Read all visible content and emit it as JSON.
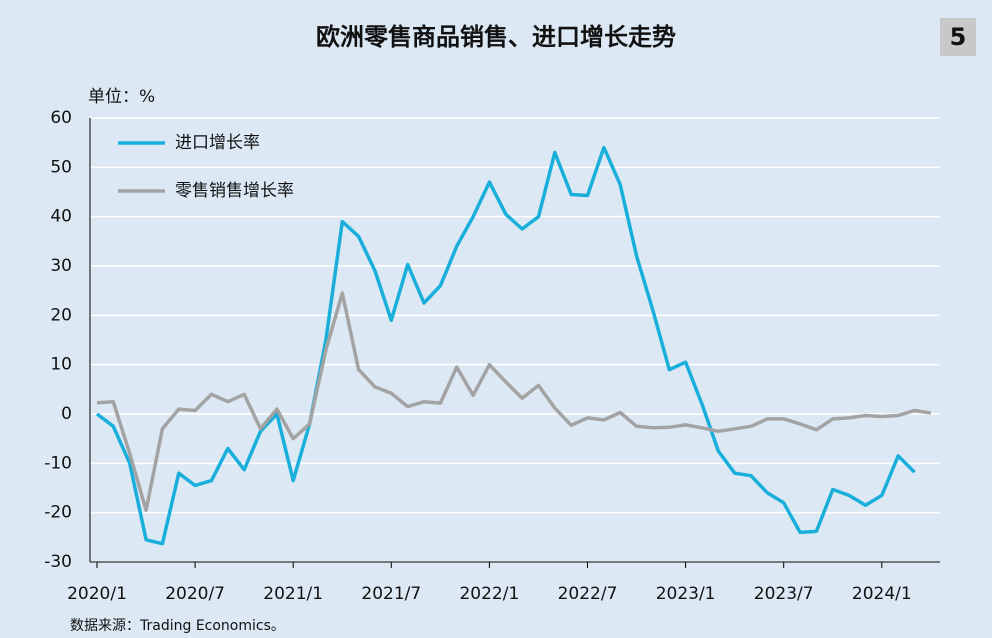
{
  "chart_data": {
    "type": "line",
    "title": "欧洲零售商品销售、进口增长走势",
    "badge": "5",
    "unit": "单位：%",
    "source": "数据来源：Trading Economics。",
    "categories": [
      "2020/1",
      null,
      null,
      null,
      null,
      null,
      "2020/7",
      null,
      null,
      null,
      null,
      null,
      "2021/1",
      null,
      null,
      null,
      null,
      null,
      "2021/7",
      null,
      null,
      null,
      null,
      null,
      "2022/1",
      null,
      null,
      null,
      null,
      null,
      "2022/7",
      null,
      null,
      null,
      null,
      null,
      "2023/1",
      null,
      null,
      null,
      null,
      null,
      "2023/7",
      null,
      null,
      null,
      null,
      null,
      "2024/1",
      null,
      null,
      null
    ],
    "series": [
      {
        "name": "进口增长率",
        "color": "#1aaedb",
        "values": [
          0,
          -2.5,
          -10,
          -25.5,
          -26.3,
          -12,
          -14.5,
          -13.5,
          -7,
          -11.3,
          -3.5,
          0,
          -13.5,
          -2,
          15,
          39,
          36,
          29,
          19,
          30.3,
          22.5,
          26,
          34,
          40,
          47,
          40.5,
          37.5,
          40,
          53,
          44.5,
          44.3,
          54,
          46.5,
          32,
          21,
          9,
          10.5,
          2,
          -7.5,
          -12,
          -12.5,
          -16,
          -18,
          -24,
          -23.8,
          -15.3,
          -16.5,
          -18.5,
          -16.5,
          -8.5,
          -11.8,
          null
        ]
      },
      {
        "name": "零售销售增长率",
        "color": "#a3a3a3",
        "values": [
          2.3,
          2.5,
          -8,
          -19.5,
          -3,
          1,
          0.7,
          4,
          2.5,
          4,
          -3,
          1,
          -5,
          -2,
          13,
          24.5,
          9,
          5.5,
          4.2,
          1.5,
          2.5,
          2.2,
          9.5,
          3.8,
          10,
          6.5,
          3.2,
          5.8,
          1.2,
          -2.3,
          -0.8,
          -1.2,
          0.3,
          -2.5,
          -2.8,
          -2.7,
          -2.2,
          -2.8,
          -3.5,
          -3,
          -2.5,
          -1,
          -1,
          -2,
          -3.2,
          -1,
          -0.8,
          -0.3,
          -0.5,
          -0.3,
          0.7,
          0.2
        ]
      }
    ],
    "ylim": [
      -30,
      60
    ],
    "yticks": [
      -30,
      -20,
      -10,
      0,
      10,
      20,
      30,
      40,
      50,
      60
    ],
    "grid": true
  }
}
